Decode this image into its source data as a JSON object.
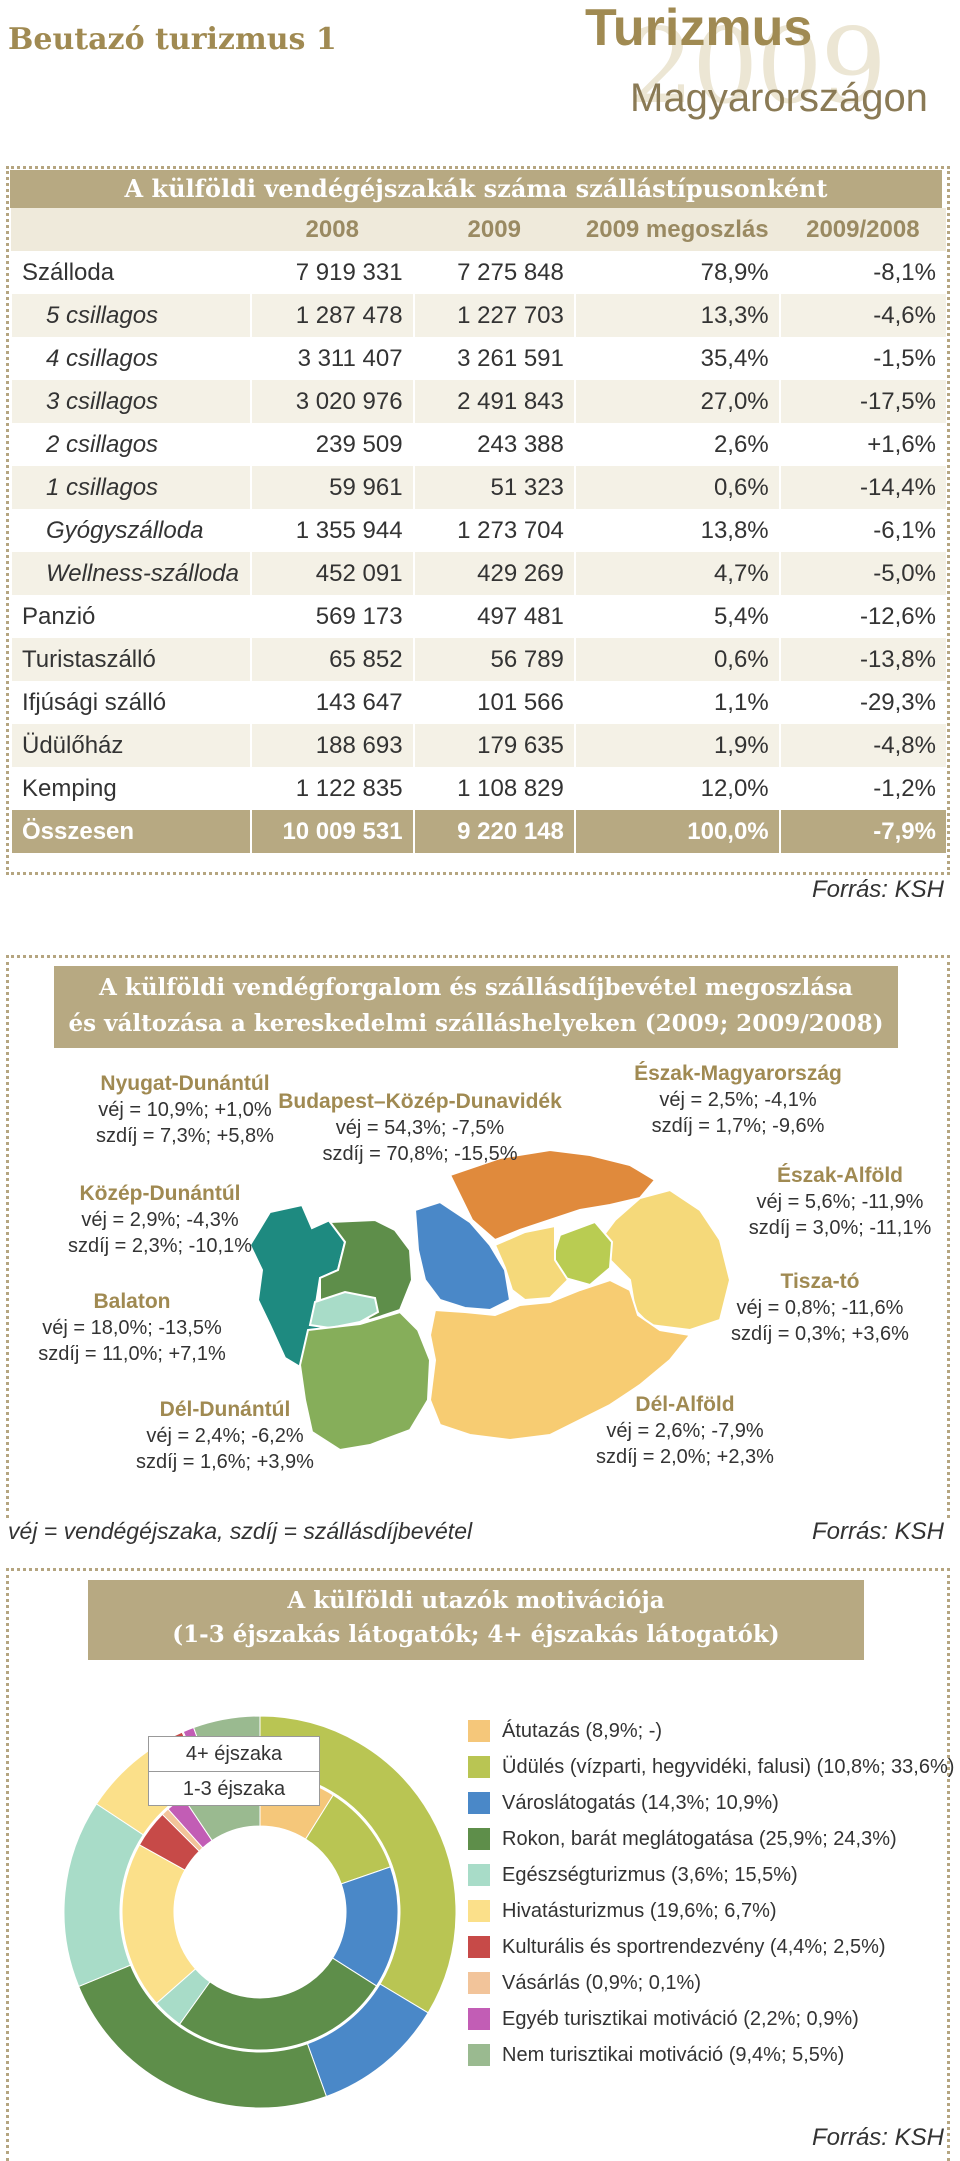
{
  "header": {
    "section_title": "Beutazó turizmus 1",
    "brand_title": "Turizmus",
    "brand_year": "2009",
    "brand_subtitle": "Magyarországon"
  },
  "table1": {
    "title": "A külföldi vendégéjszakák száma szállástípusonként",
    "columns": [
      "",
      "2008",
      "2009",
      "2009 megoszlás",
      "2009/2008"
    ],
    "rows": [
      {
        "label": "Szálloda",
        "sub": false,
        "v2008": "7 919 331",
        "v2009": "7 275 848",
        "share": "78,9%",
        "change": "-8,1%"
      },
      {
        "label": "5 csillagos",
        "sub": true,
        "v2008": "1 287 478",
        "v2009": "1 227 703",
        "share": "13,3%",
        "change": "-4,6%"
      },
      {
        "label": "4 csillagos",
        "sub": true,
        "v2008": "3 311 407",
        "v2009": "3 261 591",
        "share": "35,4%",
        "change": "-1,5%"
      },
      {
        "label": "3 csillagos",
        "sub": true,
        "v2008": "3 020 976",
        "v2009": "2 491 843",
        "share": "27,0%",
        "change": "-17,5%"
      },
      {
        "label": "2 csillagos",
        "sub": true,
        "v2008": "239 509",
        "v2009": "243 388",
        "share": "2,6%",
        "change": "+1,6%"
      },
      {
        "label": "1 csillagos",
        "sub": true,
        "v2008": "59 961",
        "v2009": "51 323",
        "share": "0,6%",
        "change": "-14,4%"
      },
      {
        "label": "Gyógyszálloda",
        "sub": true,
        "v2008": "1 355 944",
        "v2009": "1 273 704",
        "share": "13,8%",
        "change": "-6,1%"
      },
      {
        "label": "Wellness-szálloda",
        "sub": true,
        "v2008": "452 091",
        "v2009": "429 269",
        "share": "4,7%",
        "change": "-5,0%"
      },
      {
        "label": "Panzió",
        "sub": false,
        "v2008": "569 173",
        "v2009": "497 481",
        "share": "5,4%",
        "change": "-12,6%"
      },
      {
        "label": "Turistaszálló",
        "sub": false,
        "v2008": "65 852",
        "v2009": "56 789",
        "share": "0,6%",
        "change": "-13,8%"
      },
      {
        "label": "Ifjúsági szálló",
        "sub": false,
        "v2008": "143 647",
        "v2009": "101 566",
        "share": "1,1%",
        "change": "-29,3%"
      },
      {
        "label": "Üdülőház",
        "sub": false,
        "v2008": "188 693",
        "v2009": "179 635",
        "share": "1,9%",
        "change": "-4,8%"
      },
      {
        "label": "Kemping",
        "sub": false,
        "v2008": "1 122 835",
        "v2009": "1 108 829",
        "share": "12,0%",
        "change": "-1,2%"
      }
    ],
    "total": {
      "label": "Összesen",
      "v2008": "10 009 531",
      "v2009": "9 220 148",
      "share": "100,0%",
      "change": "-7,9%"
    },
    "source": "Forrás: KSH"
  },
  "map": {
    "title_line1": "A külföldi vendégforgalom és szállásdíjbevétel megoszlása",
    "title_line2": "és változása a kereskedelmi szálláshelyeken (2009; 2009/2008)",
    "regions": [
      {
        "name": "Nyugat-Dunántúl",
        "vej": "véj = 10,9%; +1,0%",
        "szdij": "szdíj = 7,3%; +5,8%",
        "color": "#1e8a80"
      },
      {
        "name": "Budapest–Közép-Dunavidék",
        "vej": "véj = 54,3%; -7,5%",
        "szdij": "szdíj = 70,8%; -15,5%",
        "color": "#4a88c8"
      },
      {
        "name": "Észak-Magyarország",
        "vej": "véj = 2,5%; -4,1%",
        "szdij": "szdíj = 1,7%; -9,6%",
        "color": "#e08a3c"
      },
      {
        "name": "Közép-Dunántúl",
        "vej": "véj = 2,9%; -4,3%",
        "szdij": "szdíj = 2,3%; -10,1%",
        "color": "#5e8e4a"
      },
      {
        "name": "Észak-Alföld",
        "vej": "véj = 5,6%; -11,9%",
        "szdij": "szdíj = 3,0%; -11,1%",
        "color": "#f5d97a"
      },
      {
        "name": "Balaton",
        "vej": "véj = 18,0%; -13,5%",
        "szdij": "szdíj = 11,0%; +7,1%",
        "color": "#a8dcc8"
      },
      {
        "name": "Tisza-tó",
        "vej": "véj = 0,8%; -11,6%",
        "szdij": "szdíj = 0,3%; +3,6%",
        "color": "#b9cc52"
      },
      {
        "name": "Dél-Dunántúl",
        "vej": "véj = 2,4%; -6,2%",
        "szdij": "szdíj = 1,6%; +3,9%",
        "color": "#86ae5a"
      },
      {
        "name": "Dél-Alföld",
        "vej": "véj = 2,6%; -7,9%",
        "szdij": "szdíj = 2,0%; +2,3%",
        "color": "#f7cc72"
      }
    ],
    "footnote": "véj = vendégéjszaka, szdíj = szállásdíjbevétel",
    "source": "Forrás: KSH"
  },
  "chart_data": {
    "type": "pie",
    "title": "A külföldi utazók motivációja (1-3 éjszakás látogatók; 4+ éjszakás látogatók)",
    "rings": [
      "1-3 éjszaka",
      "4+ éjszaka"
    ],
    "categories": [
      "Átutazás",
      "Üdülés (vízparti, hegyvidéki, falusi)",
      "Városlátogatás",
      "Rokon, barát meglátogatása",
      "Egészségturizmus",
      "Hivatásturizmus",
      "Kulturális és sportrendezvény",
      "Vásárlás",
      "Egyéb turisztikai motiváció",
      "Nem turisztikai motiváció"
    ],
    "series": [
      {
        "name": "1-3 éjszaka",
        "values": [
          8.9,
          10.8,
          14.3,
          25.9,
          3.6,
          19.6,
          4.4,
          0.9,
          2.2,
          9.4
        ]
      },
      {
        "name": "4+ éjszaka",
        "values": [
          0,
          33.6,
          10.9,
          24.3,
          15.5,
          6.7,
          2.5,
          0.1,
          0.9,
          5.5
        ]
      }
    ],
    "legend": [
      {
        "label": "Átutazás (8,9%; -)",
        "color": "#f5c77a"
      },
      {
        "label": "Üdülés (vízparti, hegyvidéki, falusi) (10,8%; 33,6%)",
        "color": "#b9c553"
      },
      {
        "label": "Városlátogatás (14,3%; 10,9%)",
        "color": "#4a88c8"
      },
      {
        "label": "Rokon, barát meglátogatása (25,9%; 24,3%)",
        "color": "#5e8e4a"
      },
      {
        "label": "Egészségturizmus (3,6%; 15,5%)",
        "color": "#a8dcc8"
      },
      {
        "label": "Hivatásturizmus (19,6%; 6,7%)",
        "color": "#fbe08a"
      },
      {
        "label": "Kulturális és sportrendezvény (4,4%; 2,5%)",
        "color": "#c74a48"
      },
      {
        "label": "Vásárlás (0,9%; 0,1%)",
        "color": "#f2c49a"
      },
      {
        "label": "Egyéb turisztikai motiváció (2,2%; 0,9%)",
        "color": "#c25db5"
      },
      {
        "label": "Nem turisztikai motiváció (9,4%; 5,5%)",
        "color": "#9aba90"
      }
    ],
    "source": "Forrás: KSH"
  }
}
